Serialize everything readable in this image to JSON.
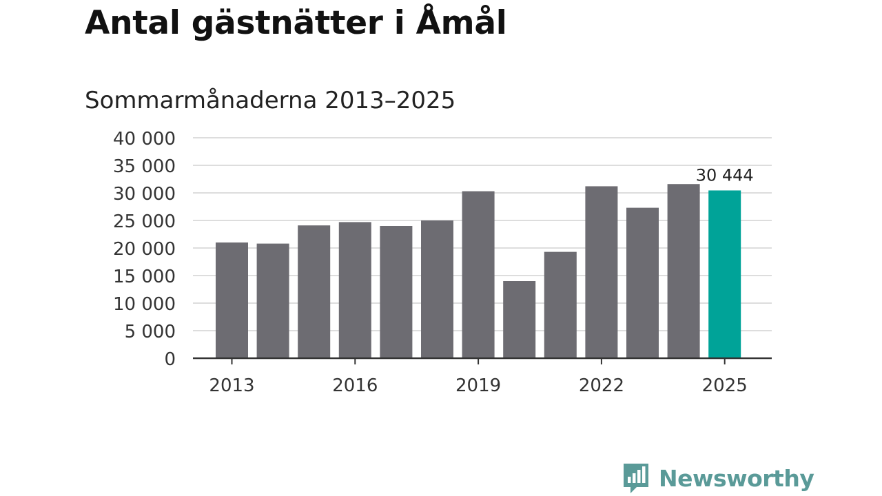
{
  "title": "Antal gästnätter i Åmål",
  "subtitle": "Sommarmånaderna 2013–2025",
  "colors": {
    "bar": "#6d6c72",
    "highlight": "#00a398",
    "grid": "#dddddd",
    "axis": "#333333"
  },
  "brand": {
    "name": "Newsworthy",
    "icon": "chart-speech-bubble-icon"
  },
  "chart_data": {
    "type": "bar",
    "categories": [
      "2013",
      "2014",
      "2015",
      "2016",
      "2017",
      "2018",
      "2019",
      "2020",
      "2021",
      "2022",
      "2023",
      "2024",
      "2025"
    ],
    "values": [
      21000,
      20800,
      24100,
      24700,
      24000,
      25000,
      30300,
      14000,
      19300,
      31200,
      27300,
      31600,
      30444
    ],
    "highlight_index": 12,
    "data_labels": [
      {
        "index": 12,
        "text": "30 444"
      }
    ],
    "x_tick_labels": [
      "2013",
      "2016",
      "2019",
      "2022",
      "2025"
    ],
    "y_ticks": [
      0,
      5000,
      10000,
      15000,
      20000,
      25000,
      30000,
      35000,
      40000
    ],
    "y_tick_labels": [
      "0",
      "5 000",
      "10 000",
      "15 000",
      "20 000",
      "25 000",
      "30 000",
      "35 000",
      "40 000"
    ],
    "ylim": [
      0,
      40000
    ],
    "grid": true,
    "legend": false
  }
}
